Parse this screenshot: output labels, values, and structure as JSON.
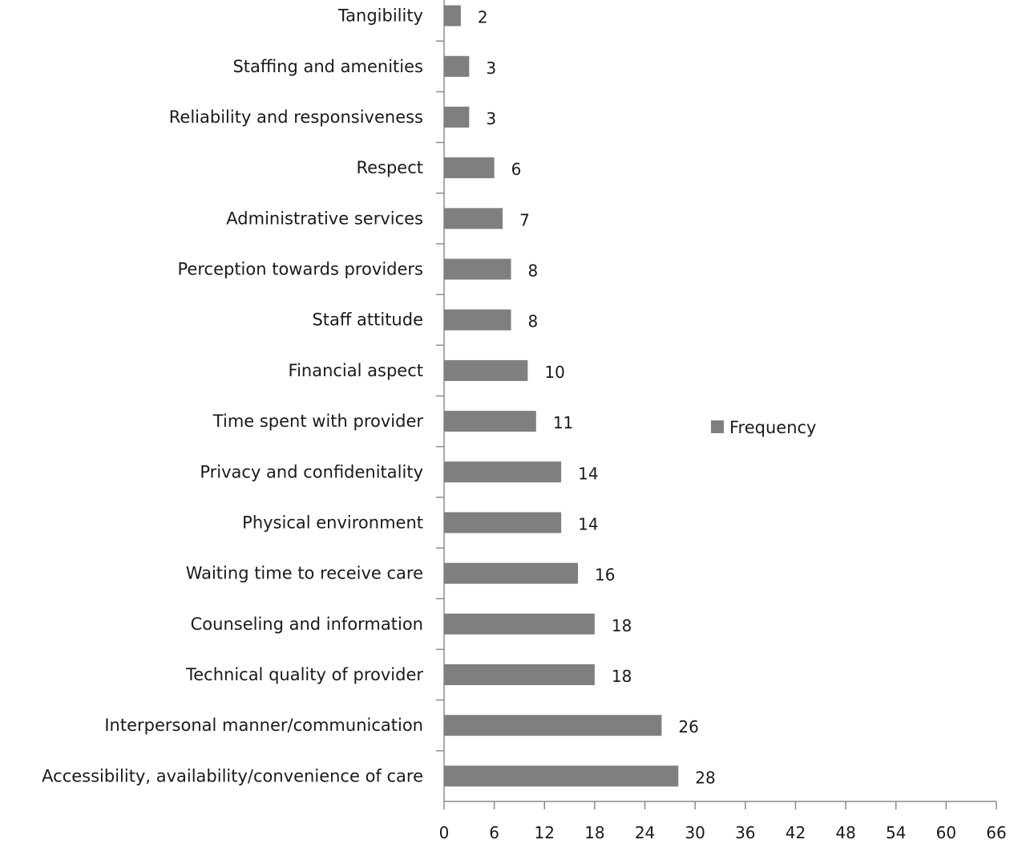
{
  "chart_data": {
    "type": "bar",
    "orientation": "horizontal",
    "categories": [
      "Tangibility",
      "Staffing and amenities",
      "Reliability and responsiveness",
      "Respect",
      "Administrative services",
      "Perception towards providers",
      "Staff attitude",
      "Financial aspect",
      "Time spent with provider",
      "Privacy and confidenitality",
      "Physical environment",
      "Waiting time to receive care",
      "Counseling and information",
      "Technical quality of provider",
      "Interpersonal manner/communication",
      "Accessibility, availability/convenience of care"
    ],
    "series": [
      {
        "name": "Frequency",
        "values": [
          2,
          3,
          3,
          6,
          7,
          8,
          8,
          10,
          11,
          14,
          14,
          16,
          18,
          18,
          26,
          28
        ],
        "color": "#7f7f7f"
      }
    ],
    "xlim": [
      0,
      66
    ],
    "xticks": [
      "0",
      "6",
      "12",
      "18",
      "24",
      "30",
      "36",
      "42",
      "48",
      "54",
      "60",
      "66"
    ],
    "title": "",
    "xlabel": "",
    "ylabel": "",
    "grid": false,
    "data_labels": true,
    "legend_position": "right"
  }
}
